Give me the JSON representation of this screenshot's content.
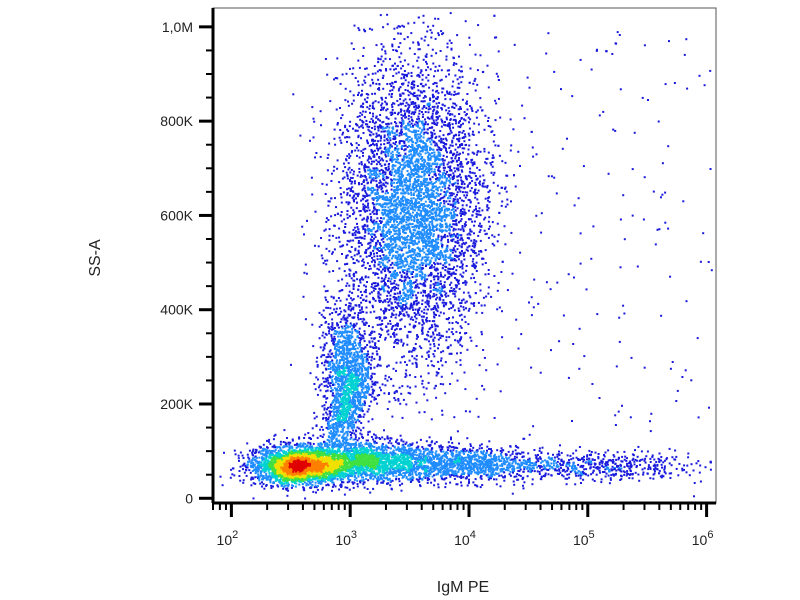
{
  "chart_data": {
    "type": "scatter",
    "xlabel": "IgM PE",
    "ylabel": "SS-A",
    "x_scale": "log",
    "xlim": [
      70,
      1200000
    ],
    "ylim": [
      -10000,
      1040000
    ],
    "x_ticks": [
      {
        "value": 100,
        "base": "10",
        "exp": "2"
      },
      {
        "value": 1000,
        "base": "10",
        "exp": "3"
      },
      {
        "value": 10000,
        "base": "10",
        "exp": "4"
      },
      {
        "value": 100000,
        "base": "10",
        "exp": "5"
      },
      {
        "value": 1000000,
        "base": "10",
        "exp": "6"
      }
    ],
    "y_ticks": [
      {
        "value": 0,
        "label": "0"
      },
      {
        "value": 200000,
        "label": "200K"
      },
      {
        "value": 400000,
        "label": "400K"
      },
      {
        "value": 600000,
        "label": "600K"
      },
      {
        "value": 800000,
        "label": "800K"
      },
      {
        "value": 1000000,
        "label": "1,0M"
      }
    ],
    "grid": false,
    "populations": [
      {
        "x_center": 350,
        "y_center": 70000,
        "count": 2600
      },
      {
        "x_center": 1200,
        "y_center": 80000,
        "count": 2200
      },
      {
        "x_center": 9000,
        "y_center": 75000,
        "count": 1000
      },
      {
        "x_center": 100000,
        "y_center": 70000,
        "count": 550
      },
      {
        "x_center": 900,
        "y_center": 280000,
        "count": 1000
      },
      {
        "x_center": 3300,
        "y_center": 620000,
        "count": 5500
      }
    ],
    "colors": [
      "#1a1adc",
      "#1f8cff",
      "#00d2d2",
      "#40e040",
      "#f0e000",
      "#ff8000",
      "#e00000"
    ]
  }
}
